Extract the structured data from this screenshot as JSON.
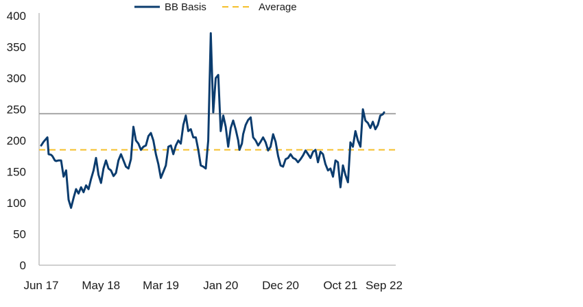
{
  "chart_data": {
    "type": "line",
    "title": "",
    "xlabel": "",
    "ylabel": "",
    "ylim": [
      0,
      400
    ],
    "yticks": [
      0,
      50,
      100,
      150,
      200,
      250,
      300,
      350,
      400
    ],
    "x_tick_labels": [
      "Jun 17",
      "May 18",
      "Mar 19",
      "Jan 20",
      "Dec 20",
      "Oct 21",
      "Sep 22"
    ],
    "x_range": [
      0,
      275
    ],
    "x_tick_positions": [
      0,
      48,
      96,
      144,
      192,
      240,
      275
    ],
    "grid": false,
    "legend_position": "top-center",
    "series": [
      {
        "name": "BB Basis",
        "color": "#0b3c6e",
        "style": "solid",
        "x": [
          0,
          2,
          5,
          6,
          8,
          9,
          11,
          12,
          14,
          16,
          18,
          20,
          22,
          24,
          26,
          28,
          30,
          32,
          34,
          36,
          38,
          40,
          42,
          44,
          46,
          48,
          50,
          52,
          54,
          56,
          58,
          60,
          62,
          64,
          66,
          68,
          70,
          72,
          74,
          76,
          78,
          80,
          82,
          84,
          86,
          88,
          90,
          92,
          94,
          96,
          98,
          100,
          102,
          104,
          106,
          108,
          110,
          112,
          114,
          116,
          118,
          120,
          122,
          124,
          126,
          128,
          130,
          132,
          134,
          136,
          138,
          140,
          142,
          144,
          146,
          148,
          150,
          152,
          154,
          156,
          158,
          159,
          161,
          162,
          164,
          166,
          168,
          170,
          172,
          174,
          176,
          178,
          180,
          182,
          184,
          186,
          188,
          190,
          192,
          194,
          196,
          198,
          200,
          202,
          204,
          206,
          208,
          210,
          212,
          214,
          216,
          218,
          220,
          222,
          224,
          226,
          228,
          230,
          232,
          234,
          236,
          238,
          240,
          242,
          244,
          246,
          248,
          250,
          252,
          254,
          256,
          258,
          260,
          262,
          264,
          266,
          268,
          270,
          272,
          274,
          275
        ],
        "values": [
          192,
          198,
          205,
          178,
          177,
          175,
          168,
          167,
          168,
          168,
          142,
          152,
          105,
          92,
          108,
          122,
          115,
          125,
          117,
          128,
          122,
          138,
          152,
          172,
          145,
          132,
          155,
          168,
          155,
          152,
          143,
          148,
          168,
          178,
          168,
          158,
          155,
          170,
          222,
          200,
          195,
          185,
          190,
          192,
          207,
          212,
          200,
          178,
          162,
          140,
          150,
          160,
          190,
          192,
          178,
          192,
          200,
          195,
          225,
          240,
          215,
          218,
          205,
          205,
          185,
          160,
          158,
          155,
          200,
          372,
          245,
          300,
          305,
          215,
          240,
          222,
          190,
          220,
          232,
          218,
          200,
          185,
          195,
          210,
          225,
          233,
          237,
          205,
          200,
          192,
          198,
          205,
          197,
          184,
          190,
          210,
          198,
          175,
          160,
          158,
          170,
          172,
          178,
          172,
          170,
          165,
          170,
          176,
          184,
          178,
          172,
          182,
          185,
          165,
          182,
          178,
          162,
          152,
          155,
          142,
          168,
          165,
          125,
          160,
          145,
          133,
          197,
          190,
          215,
          200,
          190,
          250,
          232,
          228,
          220,
          230,
          218,
          225,
          240,
          242,
          245
        ]
      },
      {
        "name": "Average",
        "color": "#f5bf2a",
        "style": "dashed",
        "value": 185
      }
    ],
    "reference_lines": [
      {
        "value": 243,
        "color": "#a6a6a6",
        "style": "solid"
      }
    ]
  }
}
